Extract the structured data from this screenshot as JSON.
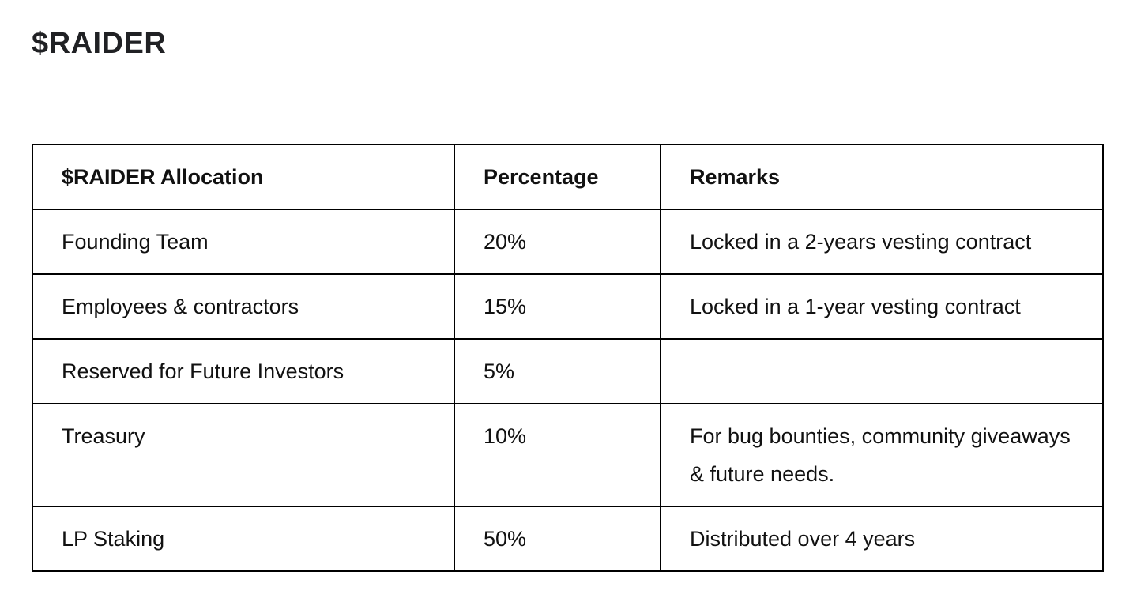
{
  "page": {
    "title": "$RAIDER"
  },
  "table": {
    "headers": {
      "allocation": "$RAIDER Allocation",
      "percentage": "Percentage",
      "remarks": "Remarks"
    },
    "rows": [
      {
        "allocation": "Founding Team",
        "percentage": "20%",
        "remarks": "Locked in a 2-years vesting contract"
      },
      {
        "allocation": "Employees & contractors",
        "percentage": "15%",
        "remarks": "Locked in a 1-year vesting contract"
      },
      {
        "allocation": "Reserved for Future Investors",
        "percentage": "5%",
        "remarks": ""
      },
      {
        "allocation": "Treasury",
        "percentage": "10%",
        "remarks": "For bug bounties, community giveaways & future needs."
      },
      {
        "allocation": "LP Staking",
        "percentage": "50%",
        "remarks": "Distributed over 4 years"
      }
    ]
  },
  "colors": {
    "background": "#ffffff",
    "text": "#111111",
    "border": "#000000"
  }
}
